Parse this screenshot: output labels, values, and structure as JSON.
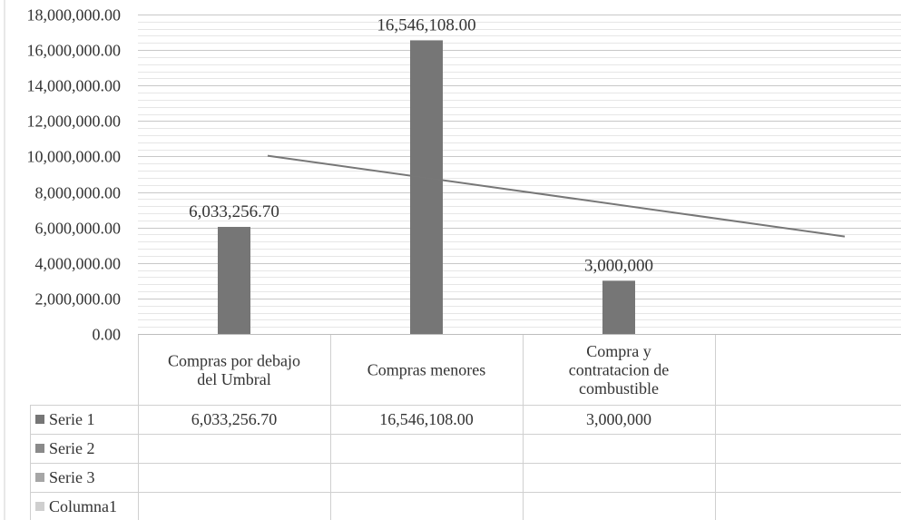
{
  "chart_data": {
    "type": "bar",
    "categories": [
      [
        "Compras por debajo",
        "del Umbral"
      ],
      [
        "Compras menores"
      ],
      [
        "Compra y",
        "contratacion de",
        "combustible"
      ],
      [
        ""
      ]
    ],
    "series": [
      {
        "name": "Serie 1",
        "values": [
          6033256.7,
          16546108.0,
          3000000,
          null
        ],
        "data_labels": [
          "6,033,256.70",
          "16,546,108.00",
          "3,000,000",
          ""
        ],
        "color": "#767676"
      },
      {
        "name": "Serie 2",
        "values": [
          null,
          null,
          null,
          null
        ],
        "data_labels": [
          "",
          "",
          "",
          ""
        ],
        "color": "#8a8a8a"
      },
      {
        "name": "Serie 3",
        "values": [
          null,
          null,
          null,
          null
        ],
        "data_labels": [
          "",
          "",
          "",
          ""
        ],
        "color": "#a6a6a6"
      },
      {
        "name": "Columna1",
        "values": [
          null,
          null,
          null,
          null
        ],
        "data_labels": [
          "",
          "",
          "",
          ""
        ],
        "color": "#cfcfcf"
      }
    ],
    "trendline": {
      "series": "Serie 1",
      "type": "linear",
      "color": "#777777"
    },
    "yticks": [
      "0.00",
      "2,000,000.00",
      "4,000,000.00",
      "6,000,000.00",
      "8,000,000.00",
      "10,000,000.00",
      "12,000,000.00",
      "14,000,000.00",
      "16,000,000.00",
      "18,000,000.00"
    ],
    "ylim": [
      0,
      18000000
    ],
    "grid": true,
    "minor_grid": true,
    "legend": "data-table-left",
    "data_table": true,
    "title": "",
    "xlabel": "",
    "ylabel": ""
  }
}
